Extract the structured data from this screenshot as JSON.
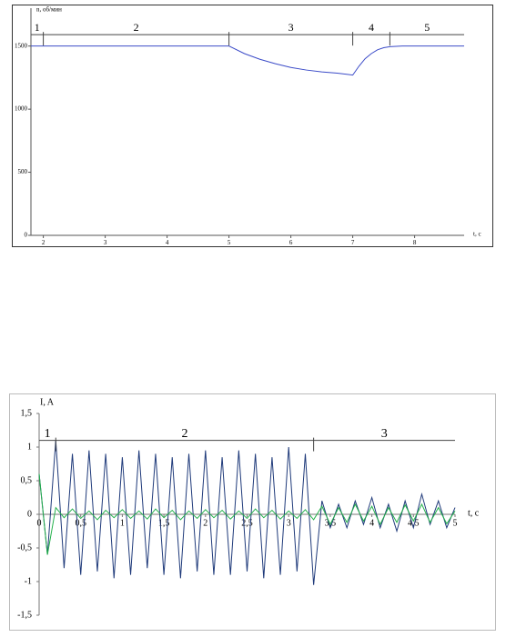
{
  "chart_data": [
    {
      "type": "line",
      "y_label": "n, об/мин",
      "x_label": "t, c",
      "xlim": [
        1.8,
        8.8
      ],
      "ylim": [
        0,
        1800
      ],
      "xticks": [
        2,
        3,
        4,
        5,
        6,
        7,
        8
      ],
      "yticks": [
        0,
        500,
        1000,
        1500
      ],
      "phases": {
        "level": 1590,
        "boundaries": [
          2,
          5,
          7,
          7.6
        ],
        "labels": [
          "1",
          "2",
          "3",
          "4",
          "5"
        ]
      },
      "series": [
        {
          "color": "#3b4bc8",
          "x": [
            1.8,
            5,
            5.25,
            5.5,
            5.75,
            6,
            6.25,
            6.5,
            6.75,
            7,
            7.1,
            7.2,
            7.3,
            7.4,
            7.5,
            7.6,
            7.8,
            8.8
          ],
          "values": [
            1500,
            1500,
            1440,
            1395,
            1360,
            1330,
            1310,
            1295,
            1285,
            1270,
            1340,
            1400,
            1440,
            1470,
            1487,
            1495,
            1500,
            1500
          ]
        }
      ]
    },
    {
      "type": "line",
      "y_label": "I, A",
      "x_label": "t, c",
      "xlim": [
        0,
        5
      ],
      "ylim": [
        -1.5,
        1.5
      ],
      "xticks": [
        0,
        {
          "value": 0.5,
          "label": "0,5"
        },
        1,
        {
          "value": 1.5,
          "label": "1,5"
        },
        2,
        {
          "value": 2.5,
          "label": "2,5"
        },
        3,
        {
          "value": 3.5,
          "label": "3,5"
        },
        4,
        {
          "value": 4.5,
          "label": "4,5"
        },
        5
      ],
      "yticks": [
        {
          "value": -1.5,
          "label": "-1,5"
        },
        -1,
        {
          "value": -0.5,
          "label": "-0,5"
        },
        0,
        {
          "value": 0.5,
          "label": "0,5"
        },
        1,
        {
          "value": 1.5,
          "label": "1,5"
        }
      ],
      "phases": {
        "level": 1.1,
        "boundaries": [
          0.2,
          3.3
        ],
        "labels": [
          "1",
          "2",
          "3"
        ]
      },
      "x": [
        0,
        0.1,
        0.2,
        0.3,
        0.4,
        0.5,
        0.6,
        0.7,
        0.8,
        0.9,
        1,
        1.1,
        1.2,
        1.3,
        1.4,
        1.5,
        1.6,
        1.7,
        1.8,
        1.9,
        2,
        2.1,
        2.2,
        2.3,
        2.4,
        2.5,
        2.6,
        2.7,
        2.8,
        2.9,
        3,
        3.1,
        3.2,
        3.3,
        3.4,
        3.5,
        3.6,
        3.7,
        3.8,
        3.9,
        4,
        4.1,
        4.2,
        4.3,
        4.4,
        4.5,
        4.6,
        4.7,
        4.8,
        4.9,
        5
      ],
      "series": [
        {
          "color": "#1f3a7a",
          "values": [
            0.6,
            -0.6,
            1.1,
            -0.8,
            0.9,
            -0.9,
            0.95,
            -0.85,
            0.9,
            -0.95,
            0.85,
            -0.9,
            0.95,
            -0.8,
            0.9,
            -0.9,
            0.85,
            -0.95,
            0.9,
            -0.85,
            0.95,
            -0.9,
            0.85,
            -0.9,
            0.95,
            -0.85,
            0.9,
            -0.95,
            0.85,
            -0.9,
            1.0,
            -0.85,
            0.9,
            -1.05,
            0.2,
            -0.2,
            0.15,
            -0.2,
            0.2,
            -0.15,
            0.25,
            -0.2,
            0.15,
            -0.25,
            0.2,
            -0.2,
            0.3,
            -0.15,
            0.2,
            -0.2,
            0.1
          ]
        },
        {
          "color": "#22b04a",
          "values": [
            0.6,
            -0.6,
            0.1,
            -0.05,
            0.08,
            -0.06,
            0.05,
            -0.08,
            0.06,
            -0.05,
            0.07,
            -0.06,
            0.05,
            -0.07,
            0.08,
            -0.05,
            0.06,
            -0.08,
            0.05,
            -0.06,
            0.07,
            -0.05,
            0.06,
            -0.07,
            0.05,
            -0.06,
            0.08,
            -0.05,
            0.06,
            -0.07,
            0.05,
            -0.06,
            0.07,
            -0.08,
            0.12,
            -0.15,
            0.1,
            -0.12,
            0.15,
            -0.1,
            0.12,
            -0.15,
            0.1,
            -0.12,
            0.14,
            -0.1,
            0.15,
            -0.12,
            0.1,
            -0.14,
            0.05
          ]
        }
      ]
    }
  ]
}
